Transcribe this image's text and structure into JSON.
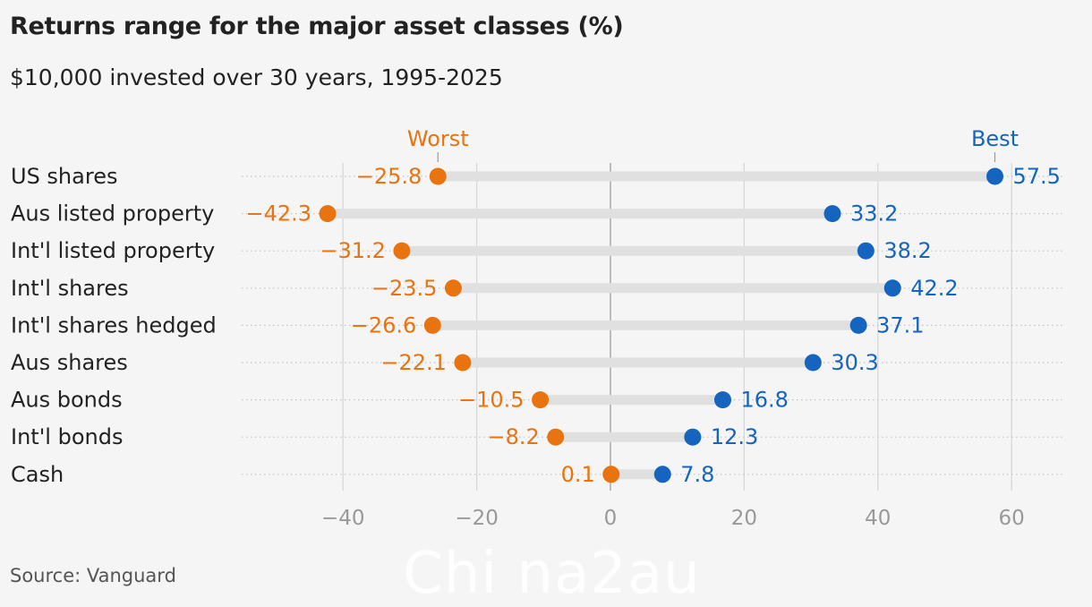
{
  "header": {
    "title": "Returns range for the major asset classes (%)",
    "subtitle": "$10,000 invested over 30 years, 1995-2025"
  },
  "footer": {
    "source": "Source: Vanguard",
    "watermark": "Chi na2au"
  },
  "chart_data": {
    "type": "dumbbell",
    "title": "Returns range for the major asset classes (%)",
    "subtitle": "$10,000 invested over 30 years, 1995-2025",
    "categories": [
      "US shares",
      "Aus listed property",
      "Int'l listed property",
      "Int'l shares",
      "Int'l shares hedged",
      "Aus shares",
      "Aus bonds",
      "Int'l bonds",
      "Cash"
    ],
    "series": [
      {
        "name": "Worst",
        "color": "#e8730f",
        "values": [
          -25.8,
          -42.3,
          -31.2,
          -23.5,
          -26.6,
          -22.1,
          -10.5,
          -8.2,
          0.1
        ],
        "labels": [
          "−25.8",
          "−42.3",
          "−31.2",
          "−23.5",
          "−26.6",
          "−22.1",
          "−10.5",
          "−8.2",
          "0.1"
        ]
      },
      {
        "name": "Best",
        "color": "#1565c0",
        "values": [
          57.5,
          33.2,
          38.2,
          42.2,
          37.1,
          30.3,
          16.8,
          12.3,
          7.8
        ],
        "labels": [
          "57.5",
          "33.2",
          "38.2",
          "42.2",
          "37.1",
          "30.3",
          "16.8",
          "12.3",
          "7.8"
        ]
      }
    ],
    "x_ticks": [
      -40,
      -20,
      0,
      20,
      40,
      60
    ],
    "x_tick_labels": [
      "−40",
      "−20",
      "0",
      "20",
      "40",
      "60"
    ],
    "xlim": [
      -55,
      68
    ],
    "grid": "vertical",
    "legend": "top, annotated above first row"
  }
}
